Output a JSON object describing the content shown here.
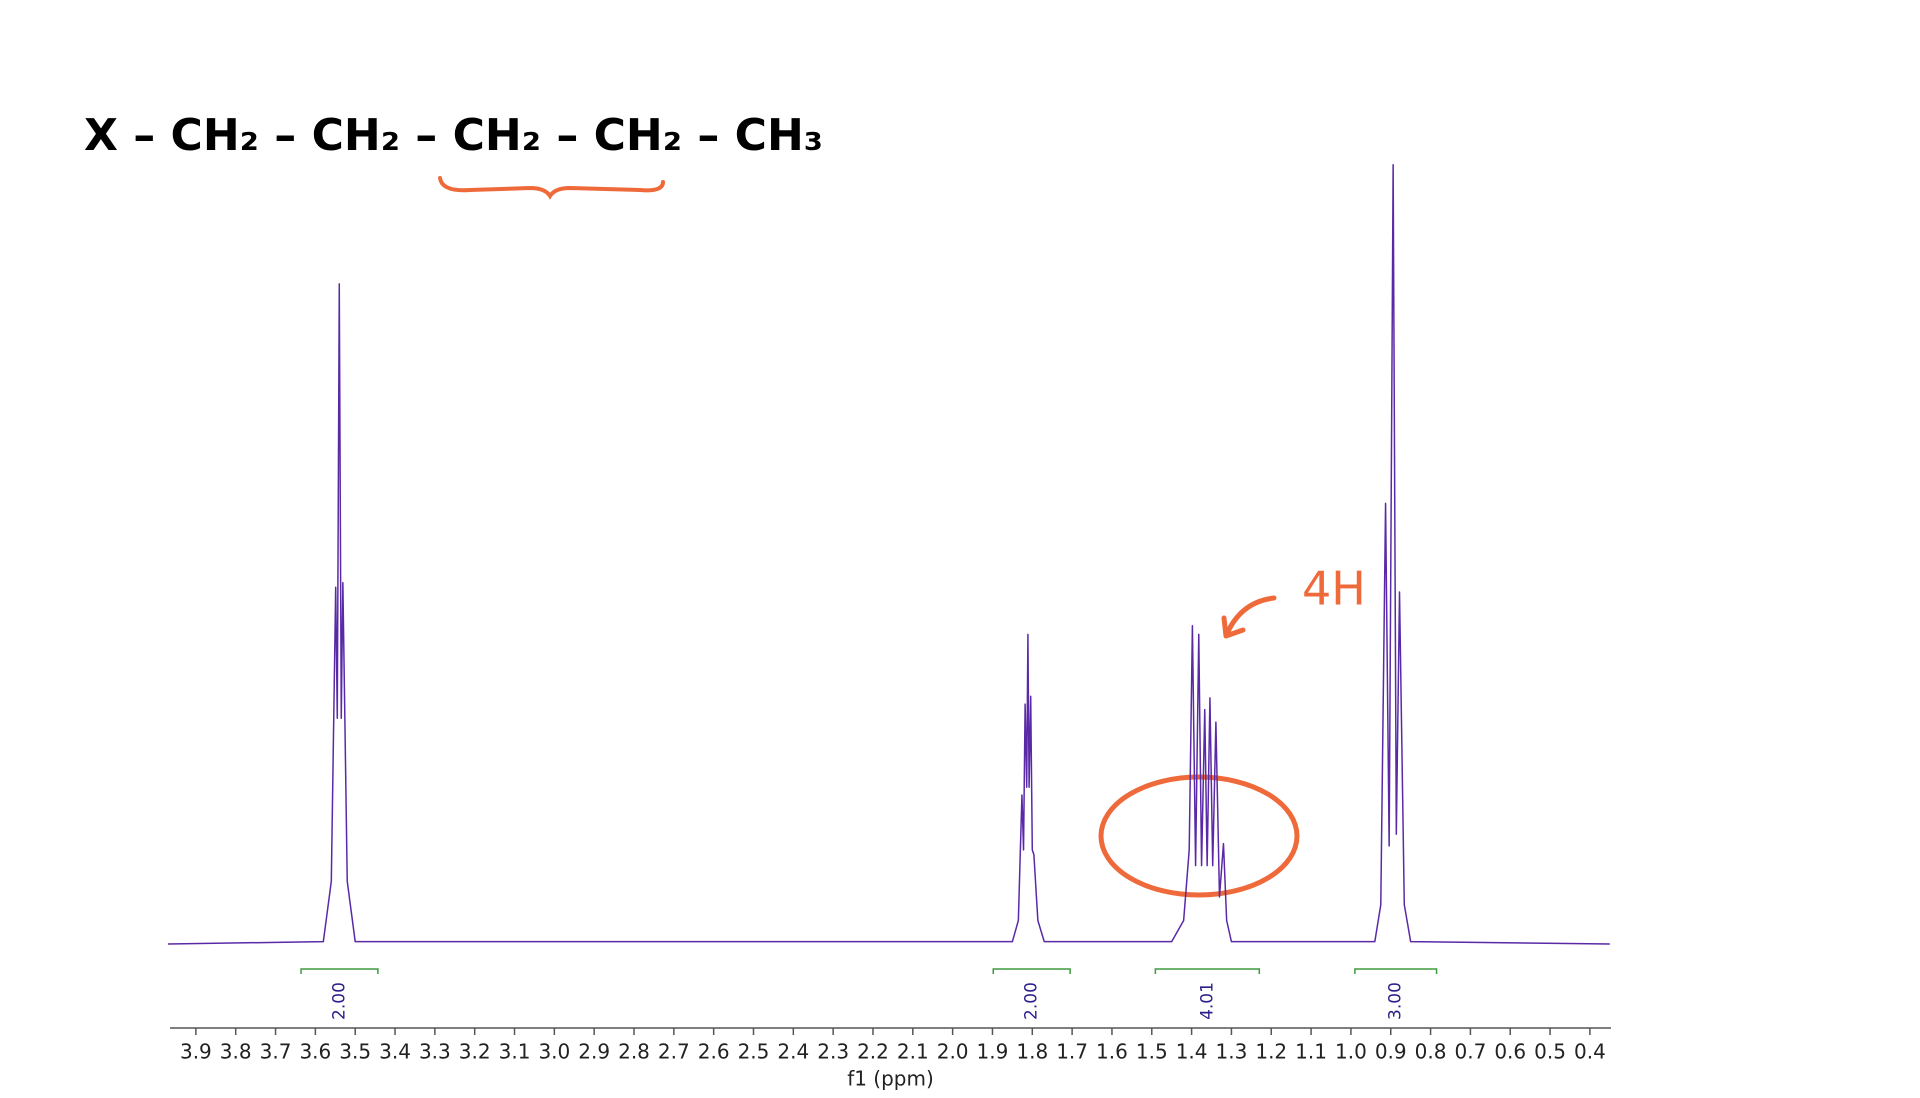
{
  "chart_data": {
    "type": "line",
    "structure": "X – CH₂ – CH₂ – CH₂ – CH₂ – CH₃",
    "annotation": "4H",
    "x_label": "f1 (ppm)",
    "x": [
      3.97,
      3.58,
      3.56,
      3.549,
      3.545,
      3.54,
      3.535,
      3.531,
      3.52,
      3.5,
      1.85,
      1.835,
      1.826,
      1.822,
      1.818,
      1.814,
      1.811,
      1.808,
      1.804,
      1.8,
      1.796,
      1.786,
      1.77,
      1.45,
      1.42,
      1.406,
      1.398,
      1.39,
      1.382,
      1.375,
      1.367,
      1.361,
      1.354,
      1.347,
      1.339,
      1.33,
      1.32,
      1.312,
      1.3,
      0.94,
      0.925,
      0.913,
      0.904,
      0.894,
      0.886,
      0.878,
      0.866,
      0.85,
      0.35
    ],
    "values": [
      0,
      0.3,
      8,
      45.5,
      28.8,
      84.2,
      28.8,
      46.1,
      8,
      0.3,
      0.3,
      3,
      19,
      12,
      30.6,
      20,
      39.5,
      20,
      31.6,
      12,
      11.4,
      3,
      0.3,
      0.3,
      3,
      12,
      40.6,
      10,
      39.5,
      10,
      29.9,
      10,
      31.4,
      10,
      28.3,
      6,
      12.8,
      3,
      0.3,
      0.3,
      5,
      56.2,
      12.5,
      99.4,
      14,
      44.9,
      5,
      0.3,
      0
    ],
    "color": "#5a2aa6",
    "xlim": [
      3.965,
      0.347
    ],
    "ylim": [
      0,
      100
    ],
    "xticks": [
      3.9,
      3.8,
      3.7,
      3.6,
      3.5,
      3.4,
      3.3,
      3.2,
      3.1,
      {
        "value": 3,
        "label": "3.0"
      },
      2.9,
      2.8,
      2.7,
      2.6,
      2.5,
      2.4,
      2.3,
      2.2,
      2.1,
      {
        "value": 2,
        "label": "2.0"
      },
      1.9,
      1.8,
      1.7,
      1.6,
      1.5,
      1.4,
      1.3,
      1.2,
      1.1,
      {
        "value": 1,
        "label": "1.0"
      },
      0.9,
      0.8,
      0.7,
      0.6,
      0.5,
      0.4
    ],
    "integrals": {
      "color": "#3f9a3f",
      "label_color": "#2a1f8a",
      "ranges": [
        [
          3.636,
          3.443
        ],
        [
          1.898,
          1.705
        ],
        [
          1.491,
          1.23
        ],
        [
          0.99,
          0.785
        ]
      ],
      "values": [
        2,
        2,
        4.01,
        3
      ],
      "value_labels": [
        "2.00",
        "2.00",
        "4.01",
        "3.00"
      ]
    }
  }
}
